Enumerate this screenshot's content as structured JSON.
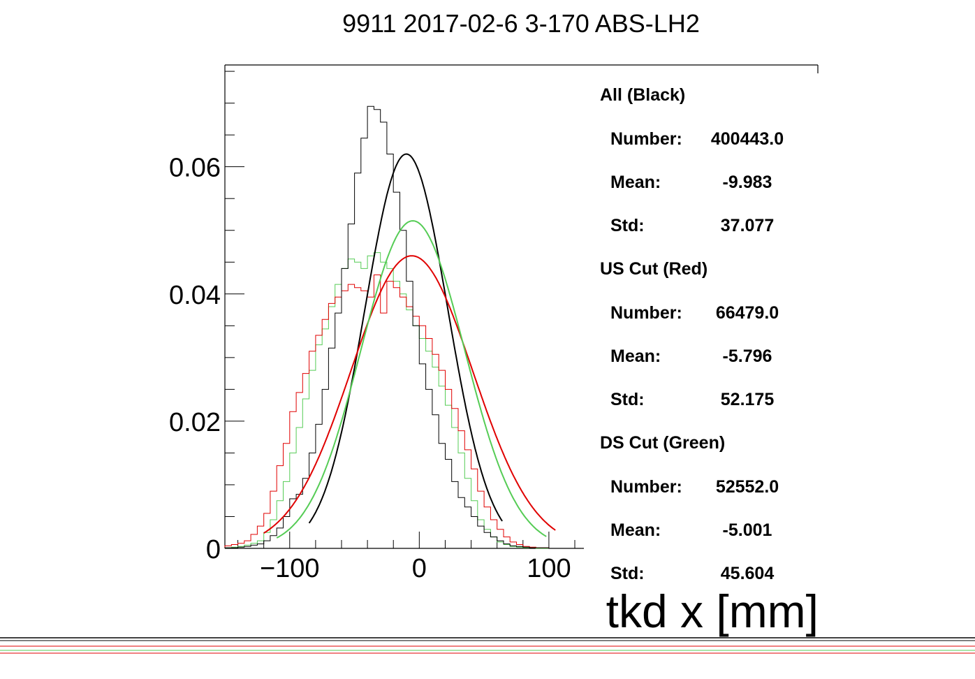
{
  "chart_data": {
    "type": "histogram",
    "title": "9911 2017-02-6 3-170 ABS-LH2",
    "xlabel": "tkd x [mm]",
    "ylabel": "",
    "xlim": [
      -150,
      127
    ],
    "ylim": [
      0,
      0.076
    ],
    "xticks": [
      -100,
      0,
      100
    ],
    "xtick_labels": [
      "−100",
      "0",
      "100"
    ],
    "yticks": [
      0,
      0.02,
      0.04,
      0.06
    ],
    "ytick_labels": [
      "0",
      "0.02",
      "0.04",
      "0.06"
    ],
    "bin_width": 5,
    "x_start": -150,
    "series": [
      {
        "name": "All (Black)",
        "color": "#000000",
        "values": [
          0.0001,
          0.0001,
          0.0002,
          0.0003,
          0.0005,
          0.0007,
          0.0012,
          0.002,
          0.0032,
          0.005,
          0.0078,
          0.0085,
          0.011,
          0.015,
          0.0195,
          0.025,
          0.0315,
          0.037,
          0.044,
          0.051,
          0.059,
          0.0645,
          0.0695,
          0.069,
          0.067,
          0.062,
          0.056,
          0.05,
          0.042,
          0.035,
          0.029,
          0.025,
          0.021,
          0.0165,
          0.014,
          0.0105,
          0.008,
          0.0065,
          0.005,
          0.0035,
          0.0025,
          0.0018,
          0.0012,
          0.0007,
          0.0004,
          0.0003,
          0.0002,
          0.0001,
          0.0001,
          0.0001,
          0.0,
          0.0,
          0.0,
          0.0,
          0.0
        ],
        "fit": {
          "mean": -9.983,
          "sigma": 32,
          "amplitude": 0.062,
          "range": [
            -85,
            64
          ]
        }
      },
      {
        "name": "US Cut (Red)",
        "color": "#e00000",
        "values": [
          0.0004,
          0.0006,
          0.0008,
          0.0012,
          0.0022,
          0.0035,
          0.0055,
          0.009,
          0.013,
          0.0165,
          0.0215,
          0.0245,
          0.0275,
          0.031,
          0.0335,
          0.036,
          0.0385,
          0.0395,
          0.0405,
          0.0415,
          0.041,
          0.0405,
          0.0395,
          0.043,
          0.037,
          0.042,
          0.041,
          0.0395,
          0.038,
          0.0365,
          0.035,
          0.033,
          0.0305,
          0.028,
          0.025,
          0.022,
          0.0185,
          0.0155,
          0.0125,
          0.009,
          0.0065,
          0.0045,
          0.003,
          0.0018,
          0.001,
          0.0006,
          0.0003,
          0.0002,
          0.0001,
          0.0001,
          0.0,
          0.0,
          0.0,
          0.0,
          0.0
        ],
        "fit": {
          "mean": -5.796,
          "sigma": 47,
          "amplitude": 0.046,
          "range": [
            -120,
            105
          ]
        }
      },
      {
        "name": "DS Cut (Green)",
        "color": "#55cc55",
        "values": [
          0.0001,
          0.0002,
          0.0003,
          0.0005,
          0.0008,
          0.0012,
          0.0025,
          0.0045,
          0.0075,
          0.0105,
          0.015,
          0.019,
          0.0235,
          0.028,
          0.032,
          0.0345,
          0.038,
          0.0415,
          0.044,
          0.0455,
          0.045,
          0.044,
          0.046,
          0.0465,
          0.045,
          0.044,
          0.042,
          0.04,
          0.0375,
          0.035,
          0.033,
          0.031,
          0.0285,
          0.0255,
          0.0225,
          0.019,
          0.015,
          0.011,
          0.0075,
          0.0045,
          0.003,
          0.0018,
          0.001,
          0.0006,
          0.0003,
          0.0002,
          0.0001,
          0.0001,
          0.0,
          0.0,
          0.0,
          0.0,
          0.0,
          0.0,
          0.0
        ],
        "fit": {
          "mean": -5.001,
          "sigma": 40,
          "amplitude": 0.0515,
          "range": [
            -110,
            98
          ]
        }
      }
    ],
    "legend": [
      {
        "header": "All (Black)",
        "rows": [
          {
            "key": "Number:",
            "value": "400443.0"
          },
          {
            "key": "Mean:",
            "value": "-9.983"
          },
          {
            "key": "Std:",
            "value": "37.077"
          }
        ]
      },
      {
        "header": "US Cut (Red)",
        "rows": [
          {
            "key": "Number:",
            "value": "66479.0"
          },
          {
            "key": "Mean:",
            "value": "-5.796"
          },
          {
            "key": "Std:",
            "value": "52.175"
          }
        ]
      },
      {
        "header": "DS Cut (Green)",
        "rows": [
          {
            "key": "Number:",
            "value": "52552.0"
          },
          {
            "key": "Mean:",
            "value": "-5.001"
          },
          {
            "key": "Std:",
            "value": "45.604"
          }
        ]
      }
    ],
    "legend_position": "right"
  }
}
